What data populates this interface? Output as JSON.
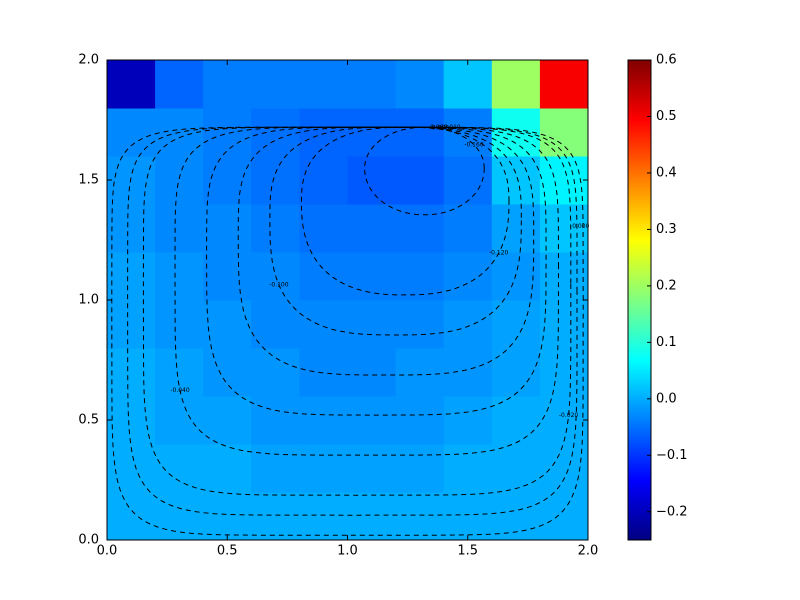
{
  "chart_data": {
    "type": "heatmap",
    "x": [
      0,
      0.2,
      0.4,
      0.6,
      0.8,
      1.0,
      1.2,
      1.4,
      1.6,
      1.8,
      2.0
    ],
    "y": [
      0,
      0.2,
      0.4,
      0.6,
      0.8,
      1.0,
      1.2,
      1.4,
      1.6,
      1.8,
      2.0
    ],
    "z": [
      [
        0,
        0,
        0,
        0,
        0,
        0,
        0,
        0,
        0,
        0
      ],
      [
        0,
        0,
        0,
        -0.01,
        -0.01,
        -0.01,
        -0.01,
        0,
        0,
        0
      ],
      [
        0,
        -0.01,
        -0.01,
        -0.02,
        -0.02,
        -0.02,
        -0.02,
        -0.01,
        0,
        0
      ],
      [
        0,
        -0.01,
        -0.02,
        -0.02,
        -0.03,
        -0.03,
        -0.02,
        -0.02,
        -0.01,
        0
      ],
      [
        -0.01,
        -0.02,
        -0.02,
        -0.03,
        -0.03,
        -0.03,
        -0.03,
        -0.02,
        -0.01,
        0
      ],
      [
        -0.01,
        -0.02,
        -0.03,
        -0.03,
        -0.04,
        -0.04,
        -0.04,
        -0.03,
        -0.02,
        0
      ],
      [
        -0.02,
        -0.03,
        -0.03,
        -0.04,
        -0.05,
        -0.05,
        -0.05,
        -0.04,
        -0.01,
        0.02
      ],
      [
        -0.02,
        -0.03,
        -0.04,
        -0.05,
        -0.06,
        -0.07,
        -0.07,
        -0.05,
        0.02,
        0.06
      ],
      [
        -0.03,
        -0.03,
        -0.04,
        -0.05,
        -0.06,
        -0.06,
        -0.06,
        -0.04,
        0.08,
        0.18
      ],
      [
        -0.2,
        -0.06,
        -0.04,
        -0.04,
        -0.04,
        -0.04,
        -0.03,
        0.02,
        0.2,
        0.5
      ]
    ],
    "colormap": "jet",
    "xlim": [
      0,
      2.0
    ],
    "ylim": [
      0,
      2.0
    ],
    "xticks": [
      {
        "value": 0,
        "label": "0.0"
      },
      {
        "value": 0.5,
        "label": "0.5"
      },
      {
        "value": 1.0,
        "label": "1.0"
      },
      1.5,
      {
        "value": 2.0,
        "label": "2.0"
      }
    ],
    "yticks": [
      {
        "value": 0,
        "label": "0.0"
      },
      {
        "value": 0.5,
        "label": "0.5"
      },
      {
        "value": 1.0,
        "label": "1.0"
      },
      1.5,
      {
        "value": 2.0,
        "label": "2.0"
      }
    ],
    "clim": [
      -0.25,
      0.6
    ],
    "cticks": [
      {
        "value": -0.2,
        "label": "−0.2"
      },
      {
        "value": -0.1,
        "label": "−0.1"
      },
      {
        "value": 0,
        "label": "0.0"
      },
      0.1,
      0.2,
      0.3,
      0.4,
      0.5,
      0.6
    ],
    "contour_levels": [
      {
        "value": -0.01,
        "label": "-0.010"
      },
      {
        "value": -0.06,
        "label": "-0.060"
      },
      {
        "value": -0.08,
        "label": "-0.080"
      },
      {
        "value": -0.16,
        "label": "-0.160"
      },
      {
        "value": -0.12,
        "label": "-0.120"
      },
      {
        "value": -0.1,
        "label": "-0.100"
      },
      {
        "value": -0.04,
        "label": "-0.040"
      },
      {
        "value": -0.02,
        "label": "-0.020"
      },
      {
        "value": 0,
        "label": "0.000"
      }
    ]
  }
}
